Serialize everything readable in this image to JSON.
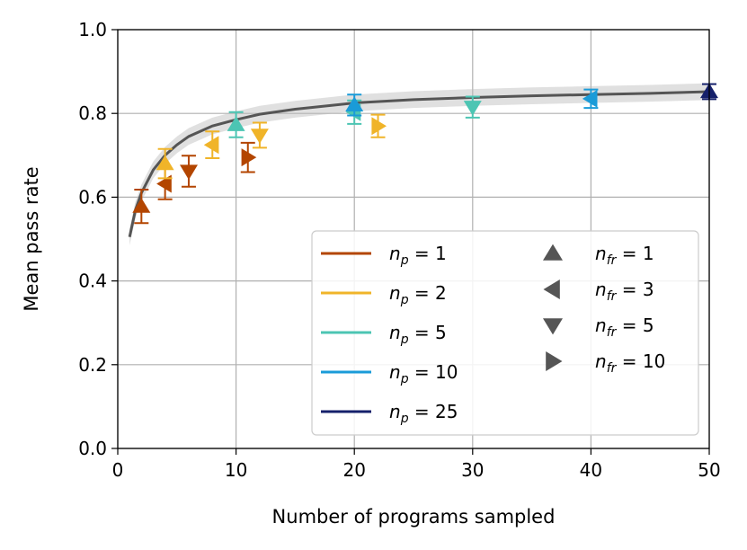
{
  "chart_data": {
    "type": "scatter",
    "title": "",
    "xlabel": "Number of programs sampled",
    "ylabel": "Mean pass rate",
    "xlim": [
      0,
      50
    ],
    "ylim": [
      0.0,
      1.0
    ],
    "xticks": [
      "0",
      "10",
      "20",
      "30",
      "40",
      "50"
    ],
    "yticks": [
      "0.0",
      "0.2",
      "0.4",
      "0.6",
      "0.8",
      "1.0"
    ],
    "grid": true,
    "legend_position": "lower-right",
    "trend": {
      "name": "mean curve",
      "color": "#555555",
      "band_color": "#bbbbbb",
      "x": [
        1,
        1.5,
        2,
        3,
        4,
        5,
        6,
        8,
        10,
        12,
        15,
        20,
        25,
        30,
        35,
        40,
        45,
        50
      ],
      "y": [
        0.505,
        0.57,
        0.61,
        0.665,
        0.7,
        0.725,
        0.745,
        0.77,
        0.785,
        0.798,
        0.81,
        0.825,
        0.833,
        0.838,
        0.842,
        0.845,
        0.848,
        0.852
      ],
      "band": 0.02
    },
    "np_series": [
      {
        "key": "1",
        "label": "n_p = 1",
        "color": "#b34500"
      },
      {
        "key": "2",
        "label": "n_p = 2",
        "color": "#f0b429"
      },
      {
        "key": "5",
        "label": "n_p = 5",
        "color": "#4cc5b3"
      },
      {
        "key": "10",
        "label": "n_p = 10",
        "color": "#1a9bd8"
      },
      {
        "key": "25",
        "label": "n_p = 25",
        "color": "#15206b"
      }
    ],
    "nfr_markers": [
      {
        "key": "1",
        "label": "n_fr = 1",
        "shape": "up"
      },
      {
        "key": "3",
        "label": "n_fr = 3",
        "shape": "left"
      },
      {
        "key": "5",
        "label": "n_fr = 5",
        "shape": "down"
      },
      {
        "key": "10",
        "label": "n_fr = 10",
        "shape": "right"
      }
    ],
    "points": [
      {
        "np": "1",
        "nfr": "1",
        "x": 2,
        "y": 0.578,
        "err": 0.04
      },
      {
        "np": "1",
        "nfr": "3",
        "x": 4,
        "y": 0.632,
        "err": 0.037
      },
      {
        "np": "1",
        "nfr": "5",
        "x": 6,
        "y": 0.662,
        "err": 0.037
      },
      {
        "np": "1",
        "nfr": "10",
        "x": 11,
        "y": 0.695,
        "err": 0.035
      },
      {
        "np": "2",
        "nfr": "1",
        "x": 4,
        "y": 0.68,
        "err": 0.035
      },
      {
        "np": "2",
        "nfr": "3",
        "x": 8,
        "y": 0.725,
        "err": 0.032
      },
      {
        "np": "2",
        "nfr": "5",
        "x": 12,
        "y": 0.748,
        "err": 0.03
      },
      {
        "np": "2",
        "nfr": "10",
        "x": 22,
        "y": 0.77,
        "err": 0.027
      },
      {
        "np": "5",
        "nfr": "1",
        "x": 10,
        "y": 0.773,
        "err": 0.03
      },
      {
        "np": "5",
        "nfr": "3",
        "x": 20,
        "y": 0.803,
        "err": 0.028
      },
      {
        "np": "5",
        "nfr": "5",
        "x": 30,
        "y": 0.815,
        "err": 0.025
      },
      {
        "np": "10",
        "nfr": "1",
        "x": 20,
        "y": 0.82,
        "err": 0.025
      },
      {
        "np": "10",
        "nfr": "3",
        "x": 40,
        "y": 0.835,
        "err": 0.022
      },
      {
        "np": "25",
        "nfr": "1",
        "x": 50,
        "y": 0.852,
        "err": 0.018
      }
    ]
  },
  "legend": {
    "np_items": [
      {
        "var": "n",
        "sub": "p",
        "rest": " = 1"
      },
      {
        "var": "n",
        "sub": "p",
        "rest": " = 2"
      },
      {
        "var": "n",
        "sub": "p",
        "rest": " = 5"
      },
      {
        "var": "n",
        "sub": "p",
        "rest": " = 10"
      },
      {
        "var": "n",
        "sub": "p",
        "rest": " = 25"
      }
    ],
    "nfr_items": [
      {
        "var": "n",
        "sub": "fr",
        "rest": " = 1"
      },
      {
        "var": "n",
        "sub": "fr",
        "rest": " = 3"
      },
      {
        "var": "n",
        "sub": "fr",
        "rest": " = 5"
      },
      {
        "var": "n",
        "sub": "fr",
        "rest": " = 10"
      }
    ],
    "marker_color": "#555555"
  }
}
